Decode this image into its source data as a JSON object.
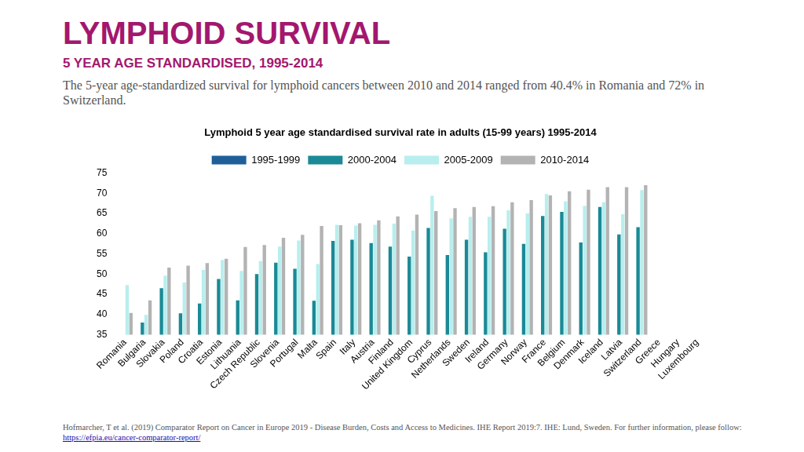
{
  "page": {
    "title": "LYMPHOID SURVIVAL",
    "subtitle": "5 YEAR AGE STANDARDISED, 1995-2014",
    "description": "The 5-year age-standardized survival for lymphoid cancers between 2010 and 2014 ranged from 40.4% in Romania and 72% in Switzerland.",
    "source": "Hofmarcher, T et al. (2019) Comparator Report on Cancer in Europe 2019 - Disease Burden, Costs and Access to Medicines. IHE Report 2019:7. IHE: Lund, Sweden. For further information, please follow:",
    "source_link": "https://efpia.eu/cancer-comparator-report/"
  },
  "chart_data": {
    "type": "bar",
    "title": "Lymphoid 5 year age standardised survival rate in adults (15-99 years) 1995-2014",
    "categories": [
      "Romania",
      "Bulgaria",
      "Slovakia",
      "Poland",
      "Croatia",
      "Estonia",
      "Lithuania",
      "Czech Republic",
      "Slovenia",
      "Portugal",
      "Malta",
      "Spain",
      "Italy",
      "Austria",
      "Finland",
      "United Kingdom",
      "Cyprus",
      "Netherlands",
      "Sweden",
      "Ireland",
      "Germany",
      "Norway",
      "France",
      "Belgium",
      "Denmark",
      "Iceland",
      "Latvia",
      "Switzerland",
      "Greece",
      "Hungary",
      "Luxembourg"
    ],
    "series": [
      {
        "name": "1995-1999",
        "color": "#1f5f99",
        "values": [
          null,
          null,
          null,
          null,
          null,
          null,
          null,
          null,
          null,
          null,
          null,
          null,
          null,
          null,
          null,
          null,
          null,
          null,
          null,
          null,
          null,
          null,
          null,
          null,
          null,
          null,
          null,
          null,
          null,
          null,
          null
        ]
      },
      {
        "name": "2000-2004",
        "color": "#1a8a96",
        "values": [
          null,
          38,
          46.5,
          40.3,
          42.7,
          48.8,
          43.5,
          50,
          52.8,
          51.3,
          43.4,
          58.2,
          58.5,
          57.7,
          56.8,
          54.3,
          61.4,
          54.7,
          58.5,
          55.4,
          61.2,
          57.5,
          64.4,
          65.4,
          57.8,
          66.6,
          59.8,
          61.6,
          null,
          null,
          null
        ]
      },
      {
        "name": "2005-2009",
        "color": "#b8eeee",
        "values": [
          47.3,
          39.9,
          49.6,
          47.9,
          51,
          53.5,
          50.8,
          53.2,
          56.8,
          58.3,
          52.5,
          62.2,
          62,
          62.2,
          62.5,
          60.8,
          69.4,
          63.8,
          64.2,
          64.2,
          65.8,
          65,
          69.8,
          68,
          66.9,
          67.8,
          64.8,
          70.8,
          null,
          null,
          null
        ]
      },
      {
        "name": "2010-2014",
        "color": "#b3b3b3",
        "values": [
          40.4,
          43.5,
          51.6,
          52.1,
          52.7,
          53.8,
          56.7,
          57.2,
          59,
          59.7,
          61.9,
          62.1,
          62.6,
          63.3,
          64.3,
          64.7,
          65.6,
          66.3,
          66.6,
          66.8,
          67.8,
          68.3,
          69.5,
          70.5,
          70.9,
          71.5,
          71.5,
          72,
          null,
          null,
          null
        ]
      }
    ],
    "ylim": [
      35,
      75
    ],
    "yticks": [
      35,
      40,
      45,
      50,
      55,
      60,
      65,
      70,
      75
    ],
    "grid": false,
    "legend": "top"
  }
}
